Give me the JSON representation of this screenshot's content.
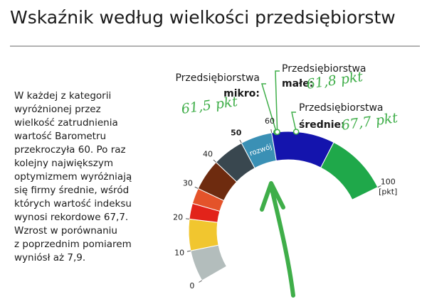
{
  "chart_data": {
    "type": "gauge",
    "title": "Wskaźnik według wielkości przedsiębiorstw",
    "description": [
      "W każdej z kategorii",
      "wyróżnionej przez",
      "wielkość zatrudnienia",
      "wartość Barometru",
      "przekroczyła 60. Po raz",
      "kolejny największym",
      "optymizmem wyróżniają",
      "się firmy średnie, wśród",
      "których wartość indeksu",
      "wynosi rekordowe 67,7.",
      "Wzrost w porównaniu",
      "z poprzednim pomiarem",
      "wyniósł aż 7,9."
    ],
    "bands": [
      0,
      10,
      20,
      25,
      30,
      40,
      50,
      60,
      80,
      100
    ],
    "band_colors": [
      "#b3bdbc",
      "#f1c62f",
      "#e2231a",
      "#e4532a",
      "#6e2b0f",
      "#39474f",
      "#3a90b5",
      "#1414ad",
      "#1fa84a"
    ],
    "band_label": "rozwój",
    "ylim": [
      0,
      100
    ],
    "yticks": [
      0,
      10,
      20,
      30,
      40,
      50,
      60,
      100
    ],
    "unit": "[pkt]",
    "series": [
      {
        "prefix": "Przedsiębiorstwa",
        "name": "mikro:",
        "value": 61.5,
        "value_label": "61,5 pkt"
      },
      {
        "prefix": "Przedsiębiorstwa",
        "name": "małe:",
        "value": 61.8,
        "value_label": "61,8 pkt"
      },
      {
        "prefix": "Przedsiębiorstwa",
        "name": "średnie:",
        "value": 67.7,
        "value_label": "67,7 pkt"
      }
    ],
    "annotation_color": "#3fae49"
  }
}
